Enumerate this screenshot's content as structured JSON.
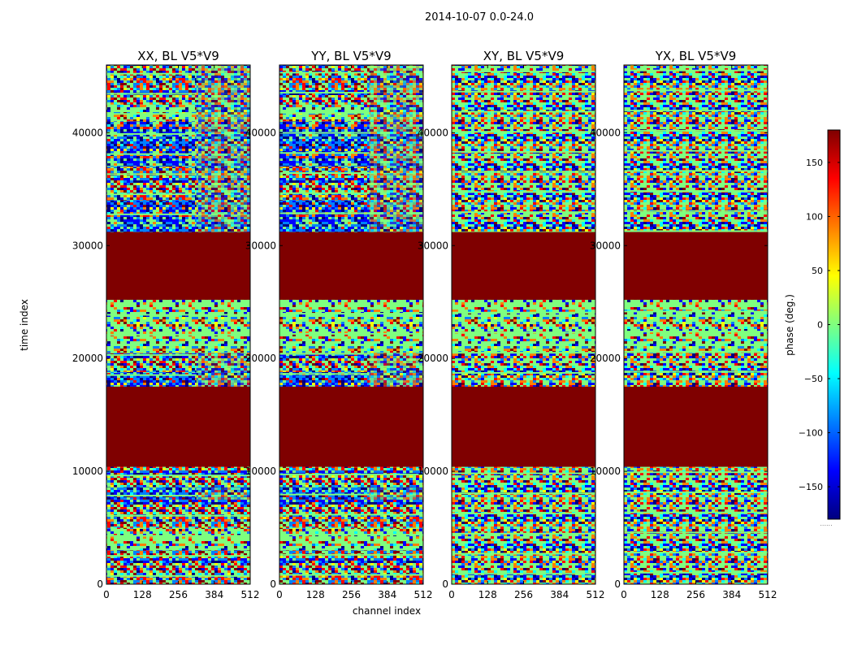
{
  "suptitle": "2014-10-07 0.0-24.0",
  "ylabel": "time index",
  "xlabel": "channel index",
  "colorbar": {
    "label": "phase (deg.)",
    "range": [
      -180,
      180
    ],
    "ticks": [
      "150",
      "100",
      "50",
      "0",
      "−50",
      "−100",
      "−150"
    ],
    "tick_values": [
      150,
      100,
      50,
      0,
      -50,
      -100,
      -150
    ],
    "colormap": "jet",
    "extra_mark": "......"
  },
  "colors": {
    "flagged": "#7f0000",
    "jet": [
      "#00007f",
      "#0000ff",
      "#007fff",
      "#00ffff",
      "#7fff7f",
      "#ffff00",
      "#ff7f00",
      "#ff0000",
      "#7f0000"
    ]
  },
  "chart_data": {
    "type": "heatmap",
    "panels": [
      {
        "title": "XX, BL V5*V9",
        "pol": "XX"
      },
      {
        "title": "YY, BL V5*V9",
        "pol": "YY"
      },
      {
        "title": "XY, BL V5*V9",
        "pol": "XY"
      },
      {
        "title": "YX, BL V5*V9",
        "pol": "YX"
      }
    ],
    "x": {
      "label": "channel index",
      "lim": [
        0,
        512
      ],
      "ticks": [
        0,
        128,
        256,
        384,
        512
      ],
      "tick_labels": [
        "0",
        "128",
        "256",
        "384",
        "512"
      ]
    },
    "y": {
      "label": "time index",
      "lim": [
        0,
        46000
      ],
      "ticks": [
        0,
        10000,
        20000,
        30000,
        40000
      ],
      "tick_labels": [
        "0",
        "10000",
        "20000",
        "30000",
        "40000"
      ]
    },
    "flagged_time_ranges": [
      [
        10400,
        17500
      ],
      [
        25200,
        31200
      ]
    ],
    "value_unit": "deg",
    "value_range": [
      -180,
      180
    ]
  }
}
